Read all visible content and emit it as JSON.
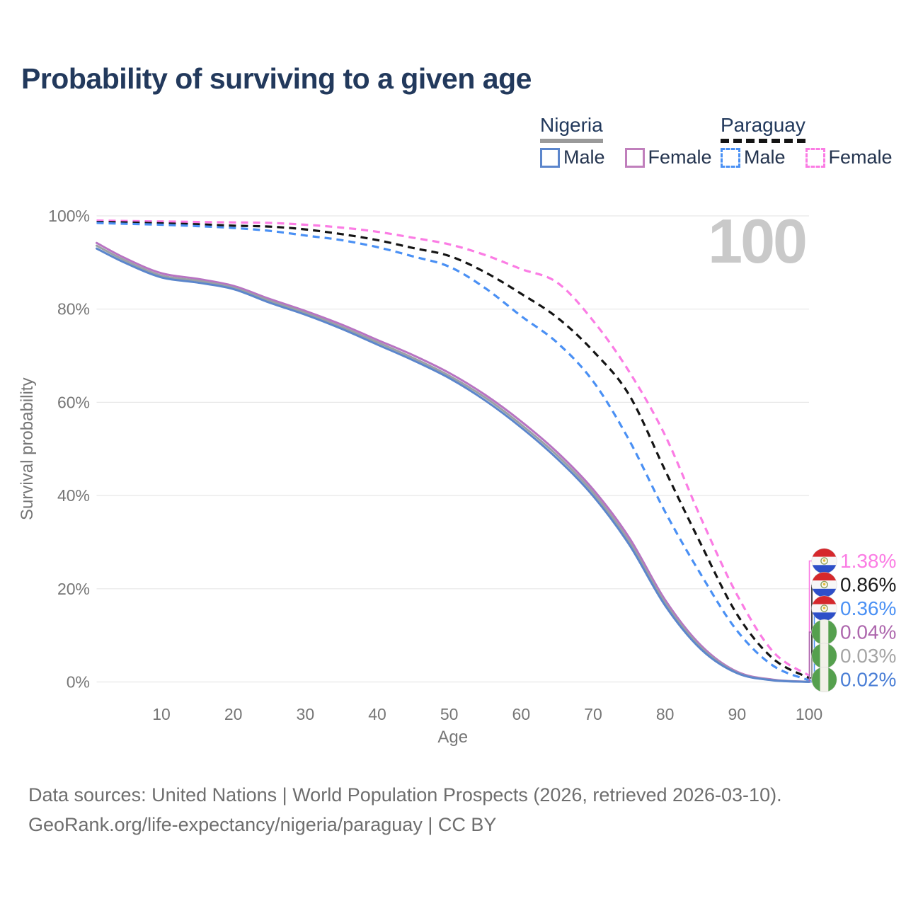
{
  "title": "Probability of surviving to a given age",
  "watermark_age": "100",
  "legend": {
    "groups": [
      {
        "label": "Nigeria",
        "line_style": "solid",
        "underline_color": "#9a9a9a",
        "items": [
          {
            "label": "Male",
            "color": "#5c86cc"
          },
          {
            "label": "Female",
            "color": "#c07fbc"
          }
        ]
      },
      {
        "label": "Paraguay",
        "line_style": "dashed",
        "underline_color": "#141414",
        "items": [
          {
            "label": "Male",
            "color": "#4a90f4"
          },
          {
            "label": "Female",
            "color": "#fb7ce4"
          }
        ]
      }
    ]
  },
  "chart_data": {
    "type": "line",
    "title": "Probability of surviving to a given age",
    "xlabel": "Age",
    "ylabel": "Survival probability",
    "xlim": [
      1,
      100
    ],
    "ylim": [
      0,
      100
    ],
    "grid": "horizontal",
    "legend_position": "top-right",
    "x_ticks": [
      10,
      20,
      30,
      40,
      50,
      60,
      70,
      80,
      90,
      100
    ],
    "y_ticks": [
      {
        "value": 0,
        "label": "0%"
      },
      {
        "value": 20,
        "label": "20%"
      },
      {
        "value": 40,
        "label": "40%"
      },
      {
        "value": 60,
        "label": "60%"
      },
      {
        "value": 80,
        "label": "80%"
      },
      {
        "value": 100,
        "label": "100%"
      }
    ],
    "x": [
      1,
      5,
      10,
      15,
      20,
      25,
      30,
      35,
      40,
      45,
      50,
      55,
      60,
      65,
      70,
      75,
      80,
      85,
      90,
      95,
      100
    ],
    "series": [
      {
        "name": "Paraguay Female",
        "country": "Paraguay",
        "sex": "Female",
        "color": "#fb7ce4",
        "dashed": true,
        "values": [
          99.0,
          98.9,
          98.8,
          98.7,
          98.6,
          98.5,
          98.1,
          97.5,
          96.6,
          95.3,
          93.9,
          91.6,
          88.6,
          85.7,
          77.5,
          66.6,
          52.9,
          35.1,
          18.7,
          6.5,
          1.38
        ],
        "end_label": {
          "text": "1.38%",
          "color": "#fb7ce4",
          "flag": "paraguay-flag-icon",
          "row": 0
        }
      },
      {
        "name": "Paraguay Both sexes",
        "country": "Paraguay",
        "sex": "Both",
        "color": "#141414",
        "dashed": true,
        "values": [
          98.7,
          98.6,
          98.4,
          98.2,
          97.9,
          97.7,
          97.1,
          96.1,
          94.8,
          93.1,
          91.4,
          87.9,
          83.3,
          78.2,
          71.0,
          61.6,
          45.4,
          29.5,
          14.5,
          5.0,
          0.86
        ],
        "end_label": {
          "text": "0.86%",
          "color": "#1a1a1a",
          "flag": "paraguay-flag-icon",
          "row": 1
        }
      },
      {
        "name": "Paraguay Male",
        "country": "Paraguay",
        "sex": "Male",
        "color": "#4a90f4",
        "dashed": true,
        "values": [
          98.5,
          98.3,
          98.1,
          97.8,
          97.4,
          96.8,
          95.8,
          94.8,
          93.3,
          91.3,
          89.1,
          84.5,
          78.5,
          72.8,
          64.5,
          51.9,
          36.5,
          23.0,
          11.0,
          3.5,
          0.36
        ],
        "end_label": {
          "text": "0.36%",
          "color": "#4a90f4",
          "flag": "paraguay-flag-icon",
          "row": 2
        }
      },
      {
        "name": "Nigeria Female",
        "country": "Nigeria",
        "sex": "Female",
        "color": "#b873c2",
        "dashed": false,
        "values": [
          94.2,
          90.9,
          87.7,
          86.5,
          85.0,
          82.2,
          79.6,
          76.7,
          73.4,
          70.1,
          66.3,
          61.6,
          55.9,
          49.3,
          41.3,
          31.0,
          17.6,
          7.8,
          2.2,
          0.5,
          0.04
        ],
        "end_label": {
          "text": "0.04%",
          "color": "#ad66ad",
          "flag": "nigeria-flag-icon",
          "row": 3
        }
      },
      {
        "name": "Nigeria Both sexes",
        "country": "Nigeria",
        "sex": "Both",
        "color": "#9aa0a6",
        "dashed": false,
        "values": [
          93.6,
          90.4,
          87.2,
          86.1,
          84.6,
          81.8,
          79.2,
          76.2,
          72.9,
          69.5,
          65.7,
          61.0,
          55.2,
          48.6,
          40.6,
          30.2,
          17.0,
          7.4,
          2.0,
          0.4,
          0.03
        ],
        "end_label": {
          "text": "0.03%",
          "color": "#a5a5a5",
          "flag": "nigeria-flag-icon",
          "row": 4
        }
      },
      {
        "name": "Nigeria Male",
        "country": "Nigeria",
        "sex": "Male",
        "color": "#5c86cc",
        "dashed": false,
        "values": [
          93.0,
          89.9,
          86.8,
          85.7,
          84.3,
          81.4,
          78.8,
          75.8,
          72.4,
          69.0,
          65.2,
          60.4,
          54.6,
          47.9,
          39.9,
          29.5,
          16.4,
          7.0,
          1.9,
          0.35,
          0.02
        ],
        "end_label": {
          "text": "0.02%",
          "color": "#4b7fd6",
          "flag": "nigeria-flag-icon",
          "row": 5
        }
      }
    ],
    "annotations": {
      "current_age_watermark": "100"
    }
  },
  "footer": {
    "line1": "Data sources: United Nations | World Population Prospects (2026, retrieved 2026-03-10).",
    "line2": "GeoRank.org/life-expectancy/nigeria/paraguay | CC BY"
  }
}
